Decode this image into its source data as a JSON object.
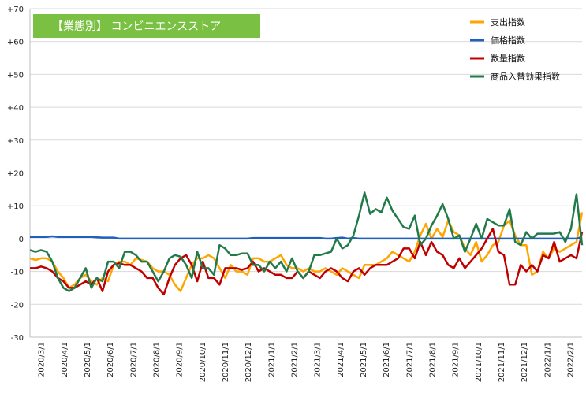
{
  "chart_data": {
    "type": "line",
    "title": "【業態別】 コンビニエンスストア",
    "xlabel": "",
    "ylabel": "",
    "ylim": [
      -30,
      70
    ],
    "yticks": [
      -30,
      -20,
      -10,
      0,
      10,
      20,
      30,
      40,
      50,
      60,
      70
    ],
    "ytick_labels": [
      "-30",
      "-20",
      "-10",
      "0",
      "+10",
      "+20",
      "+30",
      "+40",
      "+50",
      "+60",
      "+70"
    ],
    "grid": true,
    "legend_position": "top-right",
    "xtick_labels": [
      "2020/3/1",
      "2020/4/1",
      "2020/5/1",
      "2020/6/1",
      "2020/7/1",
      "2020/8/1",
      "2020/9/1",
      "2020/10/1",
      "2020/11/1",
      "2020/12/1",
      "2021/1/1",
      "2021/2/1",
      "2021/3/1",
      "2021/4/1",
      "2021/5/1",
      "2021/6/1",
      "2021/7/1",
      "2021/8/1",
      "2021/9/1",
      "2021/10/1",
      "2021/11/1",
      "2021/12/1",
      "2022/1/1",
      "2022/2/1"
    ],
    "x_start": 0,
    "x_end": 99,
    "series": [
      {
        "name": "支出指数",
        "color": "#ffa500",
        "values": [
          -6,
          -6.5,
          -6,
          -6,
          -7,
          -10,
          -12,
          -15,
          -14,
          -12,
          -11,
          -13,
          -14,
          -12,
          -13,
          -8,
          -7,
          -7,
          -8,
          -6,
          -6.5,
          -7,
          -9,
          -10,
          -10,
          -11,
          -14,
          -16,
          -12,
          -8,
          -6,
          -6,
          -5,
          -6,
          -9,
          -12,
          -8,
          -10,
          -10,
          -11,
          -6,
          -6,
          -7,
          -7,
          -6,
          -5,
          -8,
          -9,
          -9,
          -10,
          -9,
          -10,
          -10,
          -9,
          -10,
          -11,
          -9,
          -10,
          -11,
          -12,
          -8,
          -8,
          -8,
          -7,
          -6,
          -4,
          -5,
          -6,
          -7,
          -4,
          1,
          4.5,
          0,
          3,
          0.5,
          5.5,
          2,
          1,
          -3,
          -5,
          -1,
          -7,
          -5,
          -2,
          -1,
          4,
          5.5,
          1,
          -2,
          -2,
          -11,
          -10,
          -4,
          -6,
          -3,
          -4,
          -3,
          -2,
          -1,
          8
        ]
      },
      {
        "name": "価格指数",
        "color": "#1f5fbf",
        "values": [
          0.5,
          0.5,
          0.5,
          0.5,
          0.7,
          0.5,
          0.5,
          0.5,
          0.5,
          0.5,
          0.5,
          0.5,
          0.4,
          0.3,
          0.3,
          0.3,
          0,
          0,
          0,
          0,
          0,
          0,
          0,
          0,
          0,
          0,
          0,
          0,
          0,
          0,
          0,
          0,
          0,
          0,
          0,
          0,
          0,
          0,
          0,
          0,
          0.2,
          0.2,
          0.2,
          0.2,
          0.2,
          0.2,
          0.2,
          0.2,
          0.2,
          0.2,
          0.2,
          0.2,
          0.2,
          0,
          0,
          0.2,
          0.3,
          0,
          0.2,
          0,
          0,
          0,
          0,
          0,
          0,
          0,
          0,
          0,
          0,
          0,
          0,
          0,
          0,
          0,
          0,
          0,
          0,
          0,
          0,
          0,
          0,
          0,
          0,
          0,
          0,
          0,
          0,
          0,
          0,
          0,
          0,
          0,
          0,
          0,
          0,
          0,
          0,
          0,
          0,
          0.5
        ]
      },
      {
        "name": "数量指数",
        "color": "#c00000",
        "values": [
          -9,
          -9,
          -8.5,
          -9,
          -10,
          -12,
          -13,
          -15,
          -15,
          -14,
          -13,
          -14,
          -12,
          -16,
          -10,
          -8,
          -7.5,
          -8,
          -8,
          -9,
          -10,
          -12,
          -12,
          -15,
          -17,
          -12,
          -8,
          -6,
          -5,
          -8,
          -13,
          -7,
          -12,
          -12,
          -14,
          -9,
          -9,
          -9,
          -9.5,
          -9,
          -7,
          -10,
          -9,
          -10,
          -11,
          -11,
          -12,
          -12,
          -10,
          -12,
          -10,
          -11,
          -12,
          -10,
          -9,
          -10,
          -12,
          -13,
          -10,
          -9,
          -11,
          -9,
          -8,
          -8,
          -8,
          -7,
          -6,
          -3,
          -3,
          -6,
          -1,
          -5,
          -1,
          -4,
          -5,
          -8,
          -9,
          -6,
          -9,
          -7,
          -5,
          -3,
          0,
          3,
          -4,
          -5,
          -14,
          -14,
          -8,
          -10,
          -8,
          -10,
          -5,
          -6,
          -1,
          -7,
          -6,
          -5,
          -6,
          2
        ]
      },
      {
        "name": "商品入替効果指数",
        "color": "#217a4a",
        "values": [
          -3.5,
          -4,
          -3.5,
          -4,
          -7,
          -12,
          -15,
          -16,
          -15,
          -12,
          -9,
          -15,
          -12,
          -13,
          -7,
          -7,
          -9,
          -4,
          -4,
          -5,
          -7,
          -7,
          -10,
          -13,
          -10,
          -6,
          -5,
          -5.5,
          -8,
          -12,
          -4,
          -9,
          -9,
          -11,
          -2,
          -3,
          -5,
          -5,
          -4.5,
          -4.5,
          -8,
          -8,
          -10,
          -7,
          -9,
          -7,
          -10,
          -6,
          -10,
          -12,
          -10,
          -5,
          -5,
          -4.5,
          -4,
          0,
          -3,
          -2,
          1,
          7,
          14,
          7.5,
          9,
          8,
          12.5,
          8.5,
          6,
          3.5,
          3,
          7,
          -2,
          0,
          4,
          7,
          10.5,
          6,
          0,
          1,
          -4,
          0,
          4.5,
          0,
          6,
          5,
          4,
          4,
          9,
          -1,
          -2,
          2,
          0,
          1.5,
          1.5,
          1.5,
          1.5,
          2,
          -1,
          3,
          13.5,
          -2
        ]
      }
    ]
  }
}
